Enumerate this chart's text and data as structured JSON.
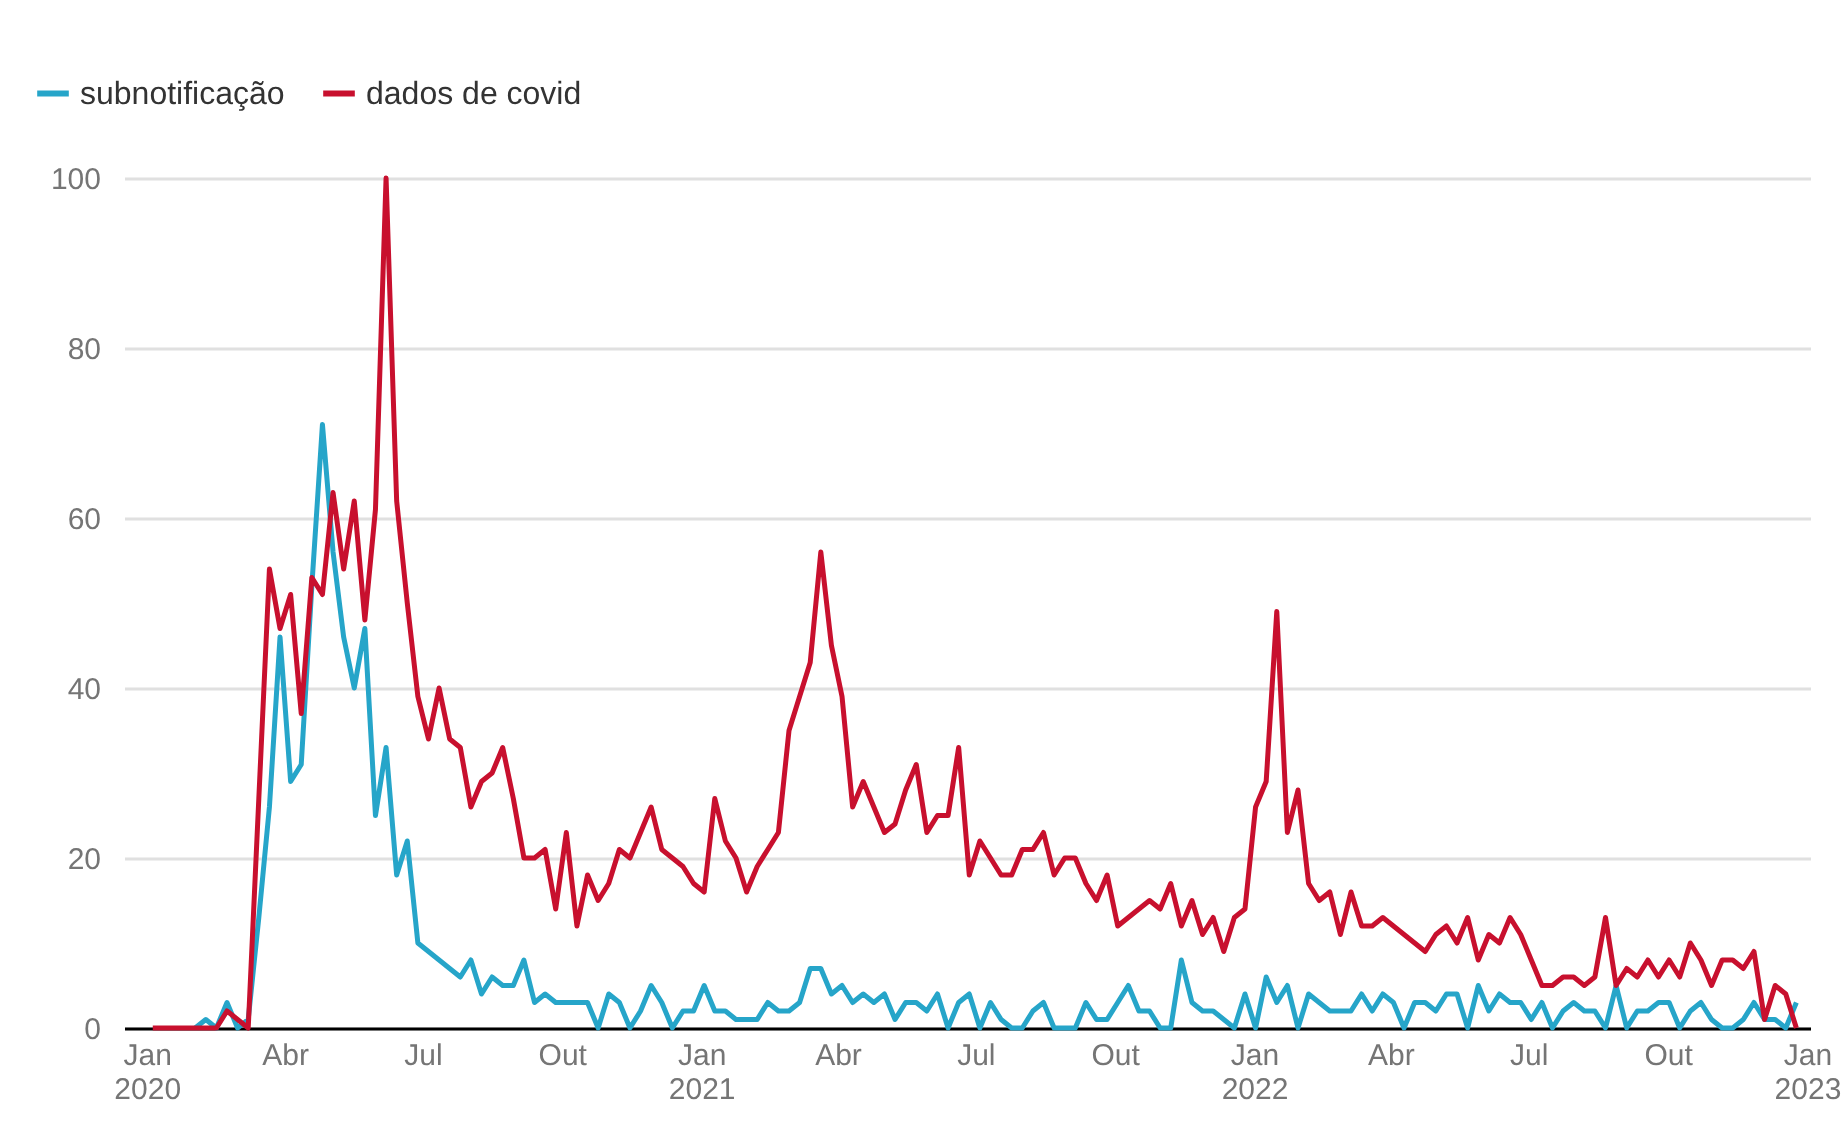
{
  "chart_data": {
    "type": "line",
    "x": [
      "2020-01-05",
      "2020-01-12",
      "2020-01-19",
      "2020-01-26",
      "2020-02-02",
      "2020-02-09",
      "2020-02-16",
      "2020-02-23",
      "2020-03-01",
      "2020-03-08",
      "2020-03-15",
      "2020-03-22",
      "2020-03-29",
      "2020-04-05",
      "2020-04-12",
      "2020-04-19",
      "2020-04-26",
      "2020-05-03",
      "2020-05-10",
      "2020-05-17",
      "2020-05-24",
      "2020-05-31",
      "2020-06-07",
      "2020-06-14",
      "2020-06-21",
      "2020-06-28",
      "2020-07-05",
      "2020-07-12",
      "2020-07-19",
      "2020-07-26",
      "2020-08-02",
      "2020-08-09",
      "2020-08-16",
      "2020-08-23",
      "2020-08-30",
      "2020-09-06",
      "2020-09-13",
      "2020-09-20",
      "2020-09-27",
      "2020-10-04",
      "2020-10-11",
      "2020-10-18",
      "2020-10-25",
      "2020-11-01",
      "2020-11-08",
      "2020-11-15",
      "2020-11-22",
      "2020-11-29",
      "2020-12-06",
      "2020-12-13",
      "2020-12-20",
      "2020-12-27",
      "2021-01-03",
      "2021-01-10",
      "2021-01-17",
      "2021-01-24",
      "2021-01-31",
      "2021-02-07",
      "2021-02-14",
      "2021-02-21",
      "2021-02-28",
      "2021-03-07",
      "2021-03-14",
      "2021-03-21",
      "2021-03-28",
      "2021-04-04",
      "2021-04-11",
      "2021-04-18",
      "2021-04-25",
      "2021-05-02",
      "2021-05-09",
      "2021-05-16",
      "2021-05-23",
      "2021-05-30",
      "2021-06-06",
      "2021-06-13",
      "2021-06-20",
      "2021-06-27",
      "2021-07-04",
      "2021-07-11",
      "2021-07-18",
      "2021-07-25",
      "2021-08-01",
      "2021-08-08",
      "2021-08-15",
      "2021-08-22",
      "2021-08-29",
      "2021-09-05",
      "2021-09-12",
      "2021-09-19",
      "2021-09-26",
      "2021-10-03",
      "2021-10-10",
      "2021-10-17",
      "2021-10-24",
      "2021-10-31",
      "2021-11-07",
      "2021-11-14",
      "2021-11-21",
      "2021-11-28",
      "2021-12-05",
      "2021-12-12",
      "2021-12-19",
      "2021-12-26",
      "2022-01-02",
      "2022-01-09",
      "2022-01-16",
      "2022-01-23",
      "2022-01-30",
      "2022-02-06",
      "2022-02-13",
      "2022-02-20",
      "2022-02-27",
      "2022-03-06",
      "2022-03-13",
      "2022-03-20",
      "2022-03-27",
      "2022-04-03",
      "2022-04-10",
      "2022-04-17",
      "2022-04-24",
      "2022-05-01",
      "2022-05-08",
      "2022-05-15",
      "2022-05-22",
      "2022-05-29",
      "2022-06-05",
      "2022-06-12",
      "2022-06-19",
      "2022-06-26",
      "2022-07-03",
      "2022-07-10",
      "2022-07-17",
      "2022-07-24",
      "2022-07-31",
      "2022-08-07",
      "2022-08-14",
      "2022-08-21",
      "2022-08-28",
      "2022-09-04",
      "2022-09-11",
      "2022-09-18",
      "2022-09-25",
      "2022-10-02",
      "2022-10-09",
      "2022-10-16",
      "2022-10-23",
      "2022-10-30",
      "2022-11-06",
      "2022-11-13",
      "2022-11-20",
      "2022-11-27",
      "2022-12-04",
      "2022-12-11",
      "2022-12-18",
      "2022-12-25"
    ],
    "series": [
      {
        "name": "subnotificação",
        "color": "#26a5c9",
        "values": [
          null,
          null,
          null,
          null,
          0,
          1,
          0,
          3,
          0,
          1,
          13,
          26,
          46,
          29,
          31,
          52,
          71,
          56,
          46,
          40,
          47,
          25,
          33,
          18,
          22,
          10,
          9,
          8,
          7,
          6,
          8,
          4,
          6,
          5,
          5,
          8,
          3,
          4,
          3,
          3,
          3,
          3,
          0,
          4,
          3,
          0,
          2,
          5,
          3,
          0,
          2,
          2,
          5,
          2,
          2,
          1,
          1,
          1,
          3,
          2,
          2,
          3,
          7,
          7,
          4,
          5,
          3,
          4,
          3,
          4,
          1,
          3,
          3,
          2,
          4,
          0,
          3,
          4,
          0,
          3,
          1,
          0,
          0,
          2,
          3,
          0,
          0,
          0,
          3,
          1,
          1,
          3,
          5,
          2,
          2,
          0,
          0,
          8,
          3,
          2,
          2,
          1,
          0,
          4,
          0,
          6,
          3,
          5,
          0,
          4,
          3,
          2,
          2,
          2,
          4,
          2,
          4,
          3,
          0,
          3,
          3,
          2,
          4,
          4,
          0,
          5,
          2,
          4,
          3,
          3,
          1,
          3,
          0,
          2,
          3,
          2,
          2,
          0,
          5,
          0,
          2,
          2,
          3,
          3,
          0,
          2,
          3,
          1,
          0,
          0,
          1,
          3,
          1,
          1,
          0,
          3
        ]
      },
      {
        "name": "dados de covid",
        "color": "#c8102e",
        "values": [
          0,
          0,
          0,
          0,
          0,
          0,
          0,
          2,
          1,
          0,
          27,
          54,
          47,
          51,
          37,
          53,
          51,
          63,
          54,
          62,
          48,
          61,
          100,
          62,
          50,
          39,
          34,
          40,
          34,
          33,
          26,
          29,
          30,
          33,
          27,
          20,
          20,
          21,
          14,
          23,
          12,
          18,
          15,
          17,
          21,
          20,
          23,
          26,
          21,
          20,
          19,
          17,
          16,
          27,
          22,
          20,
          16,
          19,
          21,
          23,
          35,
          39,
          43,
          56,
          45,
          39,
          26,
          29,
          26,
          23,
          24,
          28,
          31,
          23,
          25,
          25,
          33,
          18,
          22,
          20,
          18,
          18,
          21,
          21,
          23,
          18,
          20,
          20,
          17,
          15,
          18,
          12,
          13,
          14,
          15,
          14,
          17,
          12,
          15,
          11,
          13,
          9,
          13,
          14,
          26,
          29,
          49,
          23,
          28,
          17,
          15,
          16,
          11,
          16,
          12,
          12,
          13,
          12,
          11,
          10,
          9,
          11,
          12,
          10,
          13,
          8,
          11,
          10,
          13,
          11,
          8,
          5,
          5,
          6,
          6,
          5,
          6,
          13,
          5,
          7,
          6,
          8,
          6,
          8,
          6,
          10,
          8,
          5,
          8,
          8,
          7,
          9,
          1,
          5,
          4,
          0
        ]
      }
    ],
    "xlim": [
      "2019-12-17",
      "2023-01-03"
    ],
    "xticks": [
      {
        "value": "2020-01-01",
        "label": "Jan\n2020"
      },
      {
        "value": "2020-04-01",
        "label": "Abr"
      },
      {
        "value": "2020-07-01",
        "label": "Jul"
      },
      {
        "value": "2020-10-01",
        "label": "Out"
      },
      {
        "value": "2021-01-01",
        "label": "Jan\n2021"
      },
      {
        "value": "2021-04-01",
        "label": "Abr"
      },
      {
        "value": "2021-07-01",
        "label": "Jul"
      },
      {
        "value": "2021-10-01",
        "label": "Out"
      },
      {
        "value": "2022-01-01",
        "label": "Jan\n2022"
      },
      {
        "value": "2022-04-01",
        "label": "Abr"
      },
      {
        "value": "2022-07-01",
        "label": "Jul"
      },
      {
        "value": "2022-10-01",
        "label": "Out"
      },
      {
        "value": "2023-01-01",
        "label": "Jan\n2023"
      }
    ],
    "ylim": [
      0,
      100
    ],
    "yticks": [
      0,
      20,
      40,
      60,
      80,
      100
    ],
    "grid": "y",
    "legend": "top left"
  }
}
